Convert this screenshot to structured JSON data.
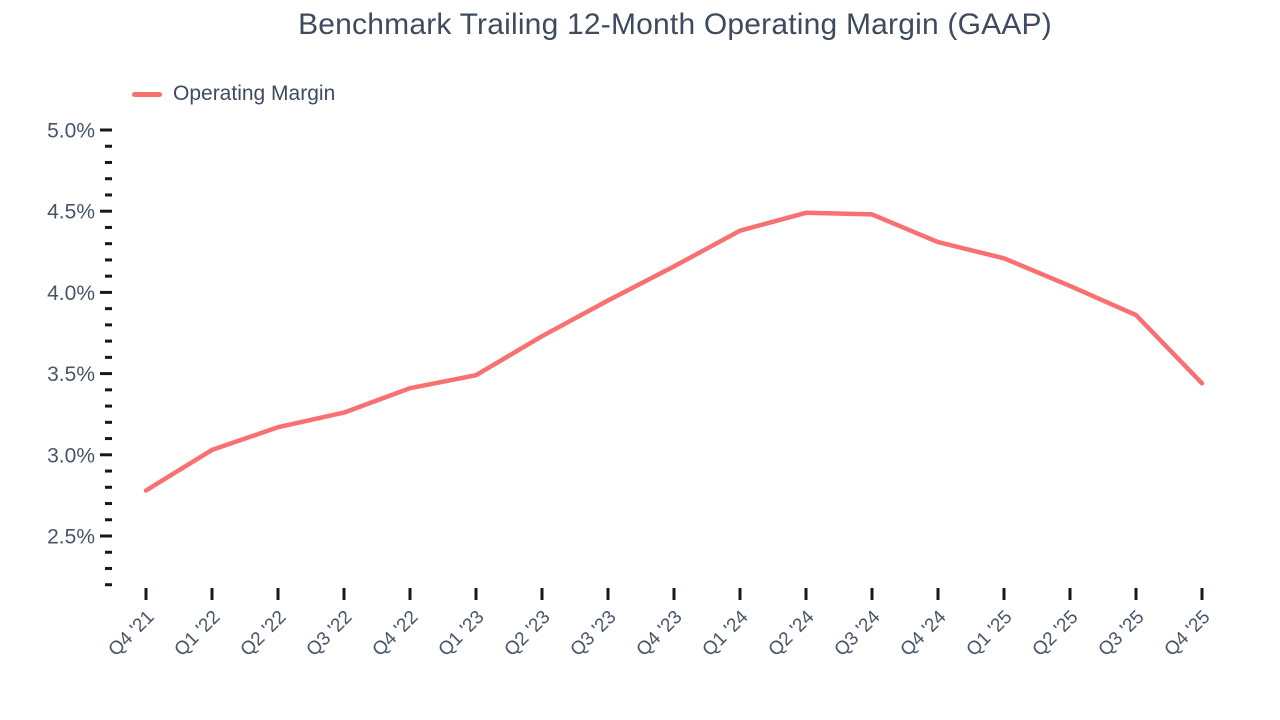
{
  "page": {
    "title": "Benchmark Trailing 12-Month Operating Margin (GAAP)"
  },
  "legend": {
    "label": "Operating Margin"
  },
  "chart_data": {
    "type": "line",
    "title": "Benchmark Trailing 12-Month Operating Margin (GAAP)",
    "categories": [
      "Q4 '21",
      "Q1 '22",
      "Q2 '22",
      "Q3 '22",
      "Q4 '22",
      "Q1 '23",
      "Q2 '23",
      "Q3 '23",
      "Q4 '23",
      "Q1 '24",
      "Q2 '24",
      "Q3 '24",
      "Q4 '24",
      "Q1 '25",
      "Q2 '25",
      "Q3 '25",
      "Q4 '25"
    ],
    "series": [
      {
        "name": "Operating Margin",
        "values": [
          2.78,
          3.03,
          3.17,
          3.26,
          3.41,
          3.49,
          3.73,
          3.95,
          4.16,
          4.38,
          4.49,
          4.48,
          4.31,
          4.21,
          4.04,
          3.86,
          3.44
        ],
        "color": "#f87070"
      }
    ],
    "unit": "%",
    "xlabel": "",
    "ylabel": "",
    "y_axis": {
      "min": 2.2,
      "max": 5.0,
      "major_tick_step": 0.5,
      "minor_tick_step": 0.1,
      "major_ticks": [
        2.5,
        3.0,
        3.5,
        4.0,
        4.5,
        5.0
      ],
      "tick_labels": [
        "2.5%",
        "3.0%",
        "3.5%",
        "4.0%",
        "4.5%",
        "5.0%"
      ]
    },
    "grid": false,
    "legend_position": "top-left"
  },
  "colors": {
    "line": "#f87070",
    "title_text": "#3e4b5e",
    "axis_text": "#47556a",
    "tick": "#15191f",
    "background": "#ffffff"
  }
}
